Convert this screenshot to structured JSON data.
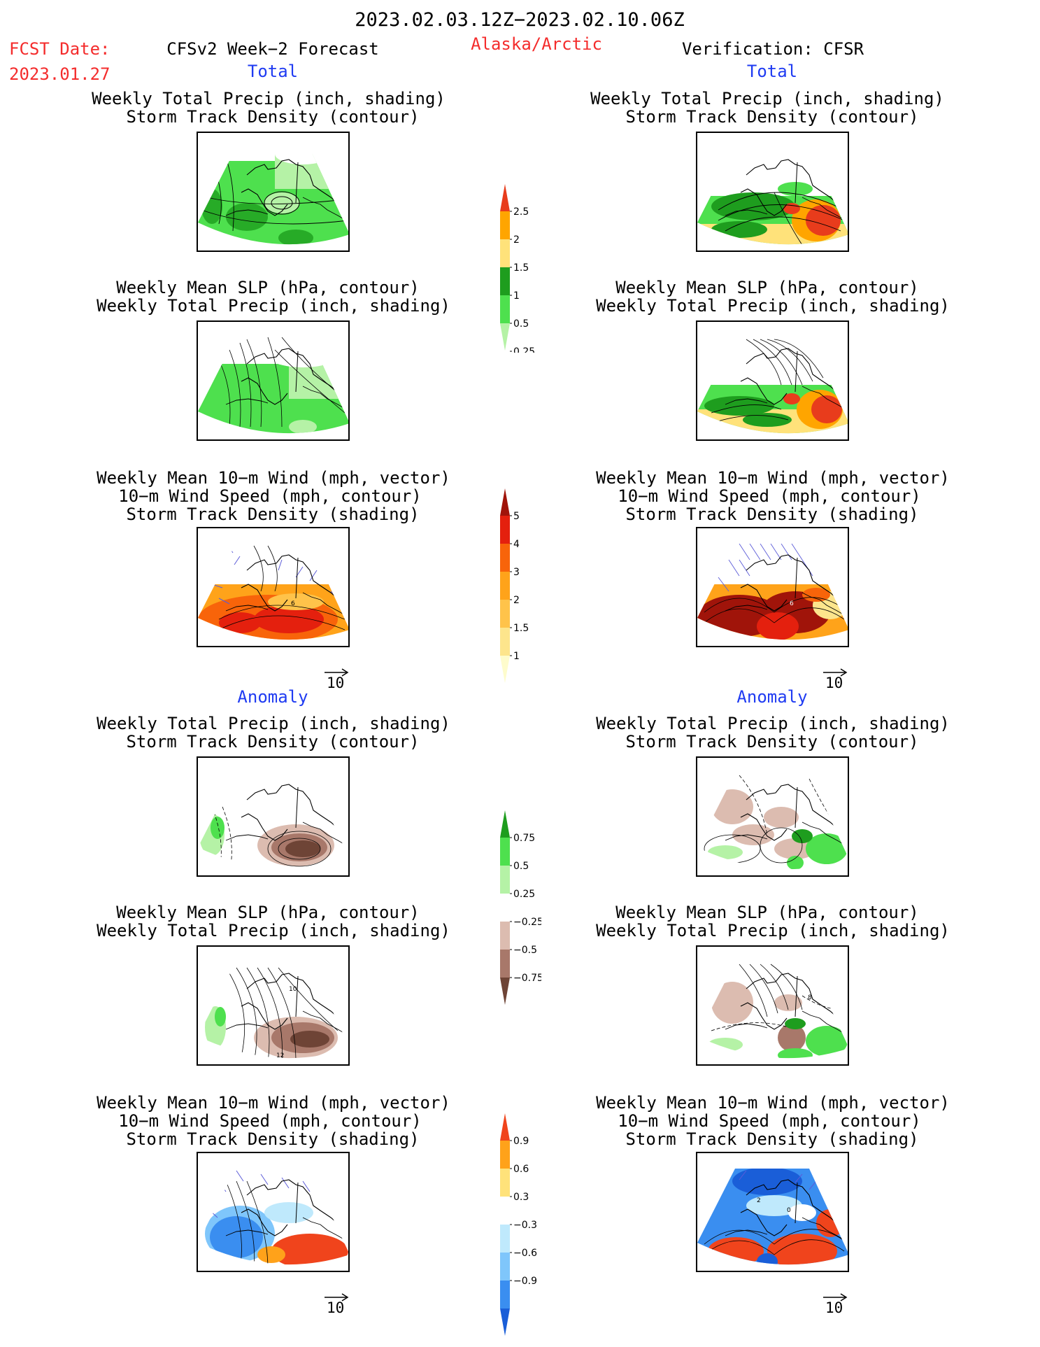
{
  "header": {
    "date_range": "2023.02.03.12Z−2023.02.10.06Z",
    "fcst_date_label": "FCST Date:",
    "fcst_date_value": "2023.01.27",
    "model": "CFSv2 Week−2 Forecast",
    "region": "Alaska/Arctic",
    "verification": "Verification: CFSR"
  },
  "sections": {
    "total": "Total",
    "anomaly": "Anomaly"
  },
  "panels": {
    "precip_storm": [
      "Weekly Total Precip (inch, shading)",
      "Storm Track Density (contour)"
    ],
    "slp_precip": [
      "Weekly Mean SLP (hPa, contour)",
      "Weekly Total Precip (inch, shading)"
    ],
    "wind_storm": [
      "Weekly Mean 10−m Wind (mph, vector)",
      "10−m Wind Speed (mph, contour)",
      "Storm Track Density (shading)"
    ]
  },
  "vector_ref": "10",
  "colorbars": {
    "precip_total": {
      "ticks": [
        "2.5",
        "2",
        "1.5",
        "1",
        "0.5",
        "0.25"
      ],
      "colors": [
        "#e83c1c",
        "#ffa500",
        "#ffe27a",
        "#1e9d1e",
        "#4ee04e",
        "#b5f2a6"
      ]
    },
    "storm_total": {
      "ticks": [
        "5",
        "4",
        "3",
        "2",
        "1.5",
        "1"
      ],
      "colors": [
        "#a0140a",
        "#e4200e",
        "#f8640a",
        "#ffa31a",
        "#ffc34a",
        "#fde58c",
        "#fefccc"
      ]
    },
    "precip_anom": {
      "ticks": [
        "0.75",
        "0.5",
        "0.25",
        "−0.25",
        "−0.5",
        "−0.75"
      ],
      "colors": [
        "#1e9d1e",
        "#4ee04e",
        "#b5f2a6",
        "#ffffff",
        "#dcbcb0",
        "#a8786a",
        "#6e4436"
      ]
    },
    "storm_anom": {
      "ticks": [
        "0.9",
        "0.6",
        "0.3",
        "−0.3",
        "−0.6",
        "−0.9"
      ],
      "colors": [
        "#f0441c",
        "#ffa21a",
        "#ffe27a",
        "#ffffff",
        "#bfe9fc",
        "#7fc6fb",
        "#3a8ef0",
        "#1a5ed8"
      ]
    }
  },
  "contour_labels": {
    "total_wind_fcst": "6",
    "total_wind_ver": "6",
    "anom_slp_fcst_top": "10",
    "anom_slp_fcst_bottom": "12",
    "anom_slp_ver": "8",
    "anom_wind_ver_a": "2",
    "anom_wind_ver_b": "0"
  },
  "colors": {
    "red_text": "#f42c2c",
    "blue_text": "#1f3bf2"
  }
}
